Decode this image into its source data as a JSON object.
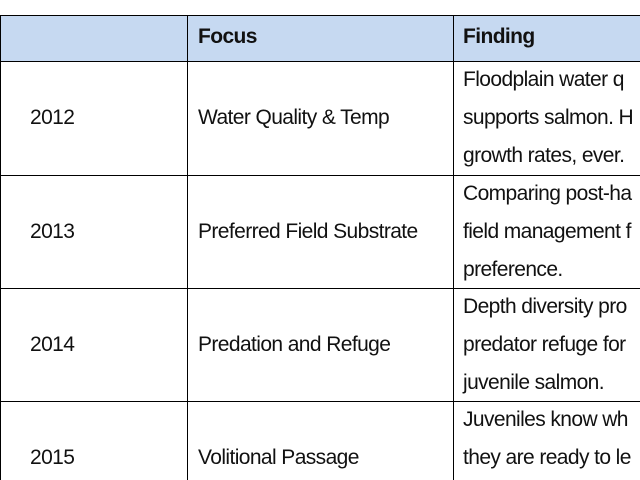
{
  "table": {
    "header": {
      "focus": "Focus",
      "finding": "Finding"
    },
    "rows": [
      {
        "year": "2012",
        "focus": "Water Quality & Temp",
        "finding": [
          "Floodplain water q",
          "supports salmon. H",
          "growth rates, ever."
        ]
      },
      {
        "year": "2013",
        "focus": "Preferred Field Substrate",
        "finding": [
          "Comparing post-ha",
          "field management f",
          "preference."
        ]
      },
      {
        "year": "2014",
        "focus": "Predation and Refuge",
        "finding": [
          "Depth diversity pro",
          "predator refuge for",
          "juvenile salmon."
        ]
      },
      {
        "year": "2015",
        "focus": "Volitional Passage",
        "finding": [
          "Juveniles know wh",
          "they are ready to le"
        ]
      }
    ]
  }
}
